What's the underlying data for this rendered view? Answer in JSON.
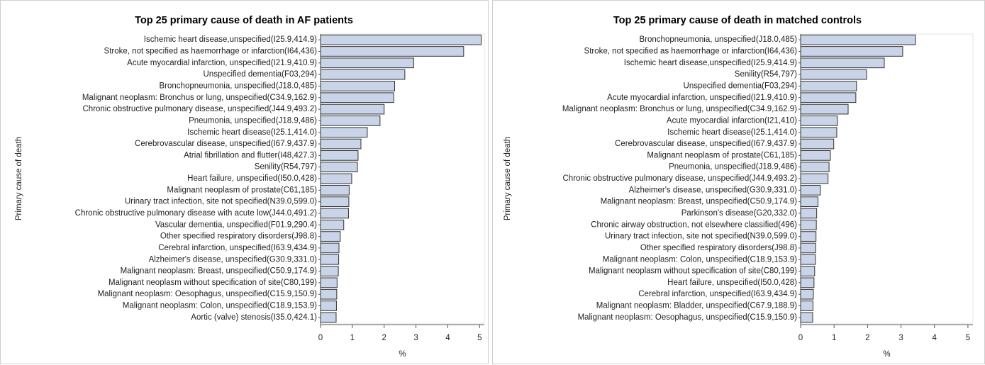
{
  "chart_data": [
    {
      "type": "bar",
      "orientation": "horizontal",
      "title": "Top 25 primary cause of death in AF patients",
      "xlabel": "%",
      "ylabel": "Primary cause of death",
      "categories": [
        "Ischemic heart disease,unspecified(I25.9,414.9)",
        "Stroke, not specified as haemorrhage or infarction(I64,436)",
        "Acute myocardial infarction, unspecified(I21.9,410.9)",
        "Unspecified dementia(F03,294)",
        "Bronchopneumonia, unspecified(J18.0,485)",
        "Malignant neoplasm: Bronchus or lung, unspecified(C34.9,162.9)",
        "Chronic obstructive pulmonary disease, unspecified(J44.9,493.2)",
        "Pneumonia, unspecified(J18.9,486)",
        "Ischemic heart disease(I25.1,414.0)",
        "Cerebrovascular disease, unspecified(I67.9,437.9)",
        "Atrial fibrillation and flutter(I48,427.3)",
        "Senility(R54,797)",
        "Heart failure, unspecified(I50.0,428)",
        "Malignant neoplasm of prostate(C61,185)",
        "Urinary tract infection, site not specified(N39.0,599.0)",
        "Chronic obstructive pulmonary disease with acute low(J44.0,491.2)",
        "Vascular dementia, unspecified(F01.9,290.4)",
        "Other specified respiratory disorders(J98.8)",
        "Cerebral infarction, unspecified(I63.9,434.9)",
        "Alzheimer's disease, unspecified(G30.9,331.0)",
        "Malignant neoplasm: Breast, unspecified(C50.9,174.9)",
        "Malignant neoplasm without specification of site(C80,199)",
        "Malignant neoplasm: Oesophagus, unspecified(C15.9,150.9)",
        "Malignant neoplasm: Colon, unspecified(C18.9,153.9)",
        "Aortic (valve) stenosis(I35.0,424.1)"
      ],
      "values": [
        5.05,
        4.5,
        2.93,
        2.65,
        2.33,
        2.3,
        2.0,
        1.87,
        1.47,
        1.27,
        1.18,
        1.16,
        0.98,
        0.9,
        0.89,
        0.88,
        0.73,
        0.62,
        0.58,
        0.57,
        0.56,
        0.52,
        0.51,
        0.5,
        0.49
      ],
      "color": "#c9d4e8",
      "xlim": [
        0,
        5.15
      ],
      "xticks": [
        0,
        1,
        2,
        3,
        4,
        5
      ]
    },
    {
      "type": "bar",
      "orientation": "horizontal",
      "title": "Top 25 primary cause of death in matched controls",
      "xlabel": "%",
      "ylabel": "Primary cause of death",
      "categories": [
        "Bronchopneumonia, unspecified(J18.0,485)",
        "Stroke, not specified as haemorrhage or infarction(I64,436)",
        "Ischemic heart disease,unspecified(I25.9,414.9)",
        "Senility(R54,797)",
        "Unspecified dementia(F03,294)",
        "Acute myocardial infarction, unspecified(I21.9,410.9)",
        "Malignant neoplasm: Bronchus or lung, unspecified(C34.9,162.9)",
        "Acute myocardial infarction(I21,410)",
        "Ischemic heart disease(I25.1,414.0)",
        "Cerebrovascular disease, unspecified(I67.9,437.9)",
        "Malignant neoplasm of prostate(C61,185)",
        "Pneumonia, unspecified(J18.9,486)",
        "Chronic obstructive pulmonary disease, unspecified(J44.9,493.2)",
        "Alzheimer's disease, unspecified(G30.9,331.0)",
        "Malignant neoplasm: Breast, unspecified(C50.9,174.9)",
        "Parkinson's disease(G20,332.0)",
        "Chronic airway obstruction, not elsewhere classified(496)",
        "Urinary tract infection, site not specified(N39.0,599.0)",
        "Other specified respiratory disorders(J98.8)",
        "Malignant neoplasm: Colon, unspecified(C18.9,153.9)",
        "Malignant neoplasm without specification of site(C80,199)",
        "Heart failure, unspecified(I50.0,428)",
        "Cerebral infarction, unspecified(I63.9,434.9)",
        "Malignant neoplasm: Bladder, unspecified(C67.9,188.9)",
        "Malignant neoplasm: Oesophagus, unspecified(C15.9,150.9)"
      ],
      "values": [
        3.43,
        3.05,
        2.5,
        1.97,
        1.67,
        1.65,
        1.42,
        1.1,
        1.08,
        0.99,
        0.89,
        0.85,
        0.82,
        0.59,
        0.52,
        0.48,
        0.47,
        0.46,
        0.45,
        0.44,
        0.42,
        0.4,
        0.38,
        0.37,
        0.36
      ],
      "color": "#c9d4e8",
      "xlim": [
        0,
        5.15
      ],
      "xticks": [
        0,
        1,
        2,
        3,
        4,
        5
      ]
    }
  ]
}
